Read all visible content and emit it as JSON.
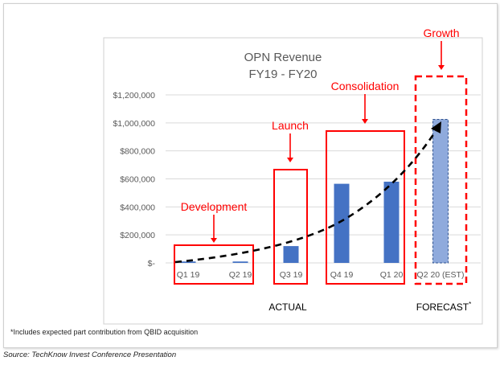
{
  "chart_data": {
    "type": "bar",
    "title_line1": "OPN Revenue",
    "title_line2": "FY19 - FY20",
    "categories": [
      "Q1 19",
      "Q2 19",
      "Q3 19",
      "Q4 19",
      "Q1 20",
      "Q2 20 (EST)"
    ],
    "values": [
      10000,
      10000,
      120000,
      565000,
      580000,
      1025000
    ],
    "forecast_index": 5,
    "yticks": [
      0,
      200000,
      400000,
      600000,
      800000,
      1000000,
      1200000
    ],
    "ytick_labels": [
      "$-",
      "$200,000",
      "$400,000",
      "$600,000",
      "$800,000",
      "$1,000,000",
      "$1,200,000"
    ],
    "ylim": [
      0,
      1200000
    ],
    "grid": true,
    "trend": "dashed curve",
    "annotations": [
      {
        "label": "Development",
        "covers": [
          0,
          1
        ]
      },
      {
        "label": "Launch",
        "covers": [
          2,
          2
        ]
      },
      {
        "label": "Consolidation",
        "covers": [
          3,
          4
        ]
      },
      {
        "label": "Growth",
        "covers": [
          5,
          5
        ],
        "dashed": true
      }
    ],
    "group_labels": {
      "actual": "ACTUAL",
      "forecast": "FORECAST",
      "forecast_sup": "*"
    },
    "colors": {
      "bar": "#4472c4",
      "forecast_bar": "#8faadc",
      "annotation": "#ff0000",
      "trend": "#000000"
    }
  },
  "footnote": "*Includes expected part contribution from QBID acquisition",
  "source": "Source: TechKnow Invest Conference Presentation"
}
